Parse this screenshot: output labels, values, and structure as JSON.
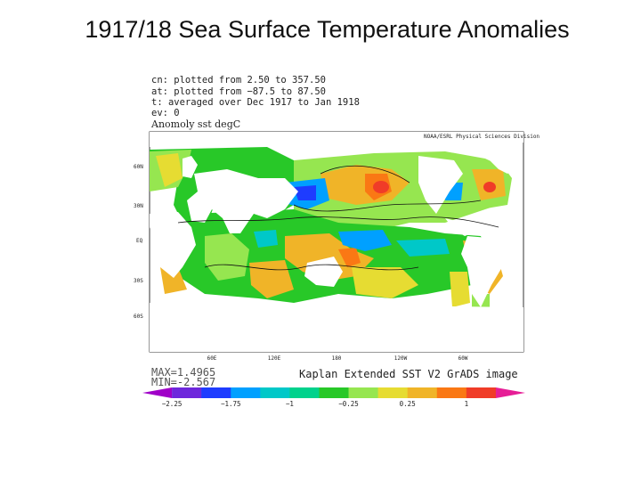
{
  "title": "1917/18 Sea Surface Temperature Anomalies",
  "header_lines": [
    "cn: plotted from 2.50 to 357.50",
    "at: plotted from −87.5 to 87.50",
    "t: averaged over Dec 1917 to Jan 1918",
    "ev: 0"
  ],
  "map_title": "Anomoly sst degC",
  "credit": "NOAA/ESRL Physical Sciences Division",
  "lat_labels": [
    "60N",
    "30N",
    "EQ",
    "30S",
    "60S"
  ],
  "lon_labels": [
    "60E",
    "120E",
    "180",
    "120W",
    "60W"
  ],
  "max_label": "MAX=1.4965",
  "min_label": "MIN=-2.567",
  "footer": "Kaplan Extended SST V2 GrADS image",
  "colorbar": {
    "colors": [
      "#a000c8",
      "#6e28dc",
      "#1e3cff",
      "#00a0ff",
      "#00c8c8",
      "#00d28c",
      "#28c828",
      "#96e650",
      "#e6dc32",
      "#f0b428",
      "#fa7814",
      "#f03c28",
      "#e61e96"
    ],
    "labels": [
      "−2.25",
      "−1.75",
      "−1",
      "−0.25",
      "0.25",
      "1"
    ]
  }
}
